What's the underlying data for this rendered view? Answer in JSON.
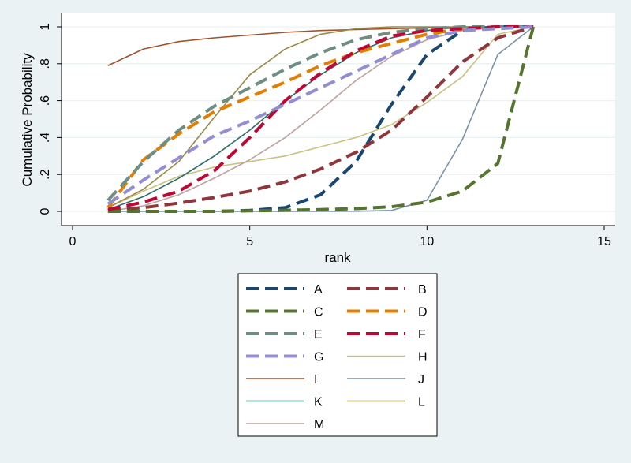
{
  "chart_data": {
    "type": "line",
    "xlabel": "rank",
    "ylabel": "Cumulative Probability",
    "xlim": [
      0,
      15
    ],
    "ylim": [
      0,
      1
    ],
    "x_ticks": [
      0,
      5,
      10,
      15
    ],
    "x_tick_labels": [
      "0",
      "5",
      "10",
      "15"
    ],
    "y_ticks": [
      0,
      0.2,
      0.4,
      0.6,
      0.8,
      1
    ],
    "y_tick_labels": [
      "0",
      ".2",
      ".4",
      ".6",
      ".8",
      "1"
    ],
    "grid": true,
    "legend_position": "bottom",
    "x": [
      1,
      2,
      3,
      4,
      5,
      6,
      7,
      8,
      9,
      10,
      11,
      12,
      13
    ],
    "series": [
      {
        "name": "A",
        "color": "#1a476f",
        "dashed": true,
        "values": [
          0.0,
          0.0,
          0.0,
          0.0,
          0.005,
          0.02,
          0.09,
          0.27,
          0.58,
          0.85,
          0.98,
          1.0,
          1.0
        ]
      },
      {
        "name": "B",
        "color": "#90353b",
        "dashed": true,
        "values": [
          0.005,
          0.02,
          0.045,
          0.075,
          0.11,
          0.16,
          0.23,
          0.32,
          0.44,
          0.62,
          0.81,
          0.94,
          1.0
        ]
      },
      {
        "name": "C",
        "color": "#55752f",
        "dashed": true,
        "values": [
          0.0,
          0.0,
          0.0,
          0.0,
          0.003,
          0.006,
          0.01,
          0.015,
          0.025,
          0.05,
          0.11,
          0.26,
          1.0
        ]
      },
      {
        "name": "D",
        "color": "#e37e00",
        "dashed": true,
        "values": [
          0.02,
          0.28,
          0.42,
          0.54,
          0.62,
          0.7,
          0.79,
          0.86,
          0.91,
          0.96,
          0.99,
          1.0,
          1.0
        ]
      },
      {
        "name": "E",
        "color": "#6e8e84",
        "dashed": true,
        "values": [
          0.06,
          0.27,
          0.44,
          0.57,
          0.67,
          0.77,
          0.86,
          0.93,
          0.97,
          0.99,
          1.0,
          1.0,
          1.0
        ]
      },
      {
        "name": "F",
        "color": "#c10534",
        "dashed": true,
        "values": [
          0.01,
          0.05,
          0.11,
          0.22,
          0.4,
          0.6,
          0.75,
          0.87,
          0.95,
          0.98,
          0.99,
          1.0,
          1.0
        ]
      },
      {
        "name": "G",
        "color": "#938dd2",
        "dashed": true,
        "values": [
          0.04,
          0.17,
          0.29,
          0.41,
          0.49,
          0.58,
          0.67,
          0.76,
          0.85,
          0.94,
          0.98,
          0.99,
          1.0
        ]
      },
      {
        "name": "H",
        "color": "#cac27e",
        "dashed": false,
        "values": [
          0.02,
          0.11,
          0.19,
          0.24,
          0.27,
          0.3,
          0.35,
          0.4,
          0.47,
          0.59,
          0.73,
          0.96,
          1.0
        ]
      },
      {
        "name": "I",
        "color": "#a0522d",
        "dashed": false,
        "values": [
          0.79,
          0.88,
          0.92,
          0.94,
          0.955,
          0.97,
          0.98,
          0.985,
          0.99,
          0.995,
          1.0,
          1.0,
          1.0
        ]
      },
      {
        "name": "J",
        "color": "#7b92a8",
        "dashed": false,
        "values": [
          0.0,
          0.0,
          0.0,
          0.0,
          0.0,
          0.0,
          0.0,
          0.001,
          0.005,
          0.06,
          0.39,
          0.85,
          1.0
        ]
      },
      {
        "name": "K",
        "color": "#2d6d66",
        "dashed": false,
        "values": [
          0.01,
          0.08,
          0.18,
          0.3,
          0.44,
          0.6,
          0.74,
          0.86,
          0.94,
          0.98,
          1.0,
          1.0,
          1.0
        ]
      },
      {
        "name": "L",
        "color": "#9c8847",
        "dashed": false,
        "values": [
          0.02,
          0.12,
          0.27,
          0.51,
          0.74,
          0.88,
          0.96,
          0.99,
          1.0,
          1.0,
          1.0,
          1.0,
          1.0
        ]
      },
      {
        "name": "M",
        "color": "#bfa19c",
        "dashed": false,
        "values": [
          0.0,
          0.03,
          0.09,
          0.18,
          0.28,
          0.4,
          0.55,
          0.71,
          0.84,
          0.93,
          0.98,
          1.0,
          1.0
        ]
      }
    ]
  }
}
